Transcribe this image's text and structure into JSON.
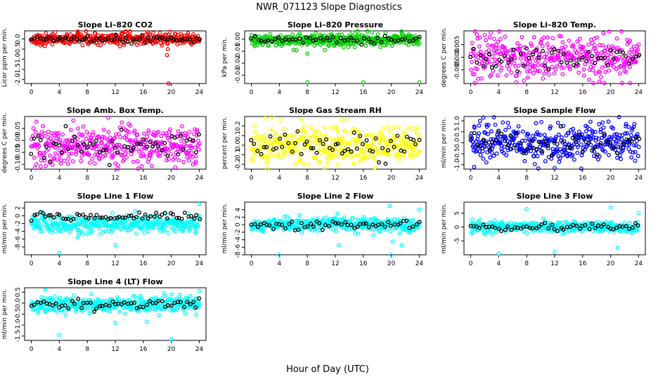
{
  "figure": {
    "title": "NWR_071123  Slope Diagnostics",
    "xlabel": "Hour of Day (UTC)",
    "colors": {
      "background": "#ffffff",
      "axis": "#000000",
      "reference_points": "#000000"
    }
  },
  "chart_data": [
    {
      "type": "scatter",
      "title": "Slope Li–820 CO2",
      "ylabel": "Licor ppm per min.",
      "color": "#ff0000",
      "xlim": [
        0,
        24
      ],
      "ylim": [
        -2.2,
        0.4
      ],
      "xticks": [
        0,
        4,
        8,
        12,
        16,
        20,
        24
      ],
      "yticks": [
        -2.0,
        -1.5,
        -1.0,
        -0.5,
        0.0
      ],
      "ytick_labels": [
        "-2.0",
        "-1.5",
        "-1.0",
        "-0.5",
        "0.0"
      ],
      "baseline": 0.0,
      "spread": 0.14,
      "black_spread": 0.09,
      "black_count": 60,
      "outliers": [
        [
          19.6,
          -2.2
        ],
        [
          19.4,
          -0.8
        ],
        [
          19.5,
          -0.5
        ],
        [
          20.5,
          0.25
        ],
        [
          19.8,
          0.35
        ],
        [
          1.2,
          0.15
        ]
      ]
    },
    {
      "type": "scatter",
      "title": "Slope Li–820 Pressure",
      "ylabel": "kPa per min.",
      "color": "#00cc00",
      "xlim": [
        0,
        24
      ],
      "ylim": [
        -0.037,
        0.007
      ],
      "xticks": [
        0,
        4,
        8,
        12,
        16,
        20,
        24
      ],
      "yticks": [
        -0.03,
        -0.02,
        -0.01,
        0.0
      ],
      "ytick_labels": [
        "-0.03",
        "-0.02",
        "-0.01",
        "0.00"
      ],
      "baseline": -0.0005,
      "spread": 0.0025,
      "black_spread": 0.0015,
      "black_count": 50,
      "outliers": [
        [
          8.0,
          -0.036
        ],
        [
          16.0,
          -0.036
        ],
        [
          24.0,
          -0.036
        ],
        [
          8.0,
          -0.012
        ],
        [
          10.5,
          -0.009
        ],
        [
          21.5,
          0.005
        ],
        [
          22.5,
          0.004
        ]
      ]
    },
    {
      "type": "scatter",
      "title": "Slope Li–820 Temp.",
      "ylabel": "degrees C per min.",
      "color": "#ff00ff",
      "xlim": [
        0,
        24
      ],
      "ylim": [
        -0.0105,
        0.0105
      ],
      "xticks": [
        0,
        4,
        8,
        12,
        16,
        20,
        24
      ],
      "yticks": [
        -0.005,
        0.0,
        0.005
      ],
      "ytick_labels": [
        "-0.005",
        "0.000",
        "0.005"
      ],
      "baseline": 0.0,
      "spread": 0.0042,
      "black_spread": 0.0025,
      "black_count": 55,
      "outliers": [
        [
          19.8,
          0.0102
        ],
        [
          17.5,
          -0.0103
        ],
        [
          22.8,
          -0.0103
        ]
      ]
    },
    {
      "type": "scatter",
      "title": "Slope Amb. Box Temp.",
      "ylabel": "degrees C per min.",
      "color": "#ff00ff",
      "xlim": [
        0,
        24
      ],
      "ylim": [
        -0.12,
        0.1
      ],
      "xticks": [
        0,
        4,
        8,
        12,
        16,
        20,
        24
      ],
      "yticks": [
        -0.1,
        -0.05,
        0.0,
        0.05
      ],
      "ytick_labels": [
        "-0.10",
        "-0.05",
        "0.00",
        "0.05"
      ],
      "baseline": -0.02,
      "spread": 0.042,
      "black_spread": 0.03,
      "black_count": 55,
      "outliers": [
        [
          11.0,
          0.095
        ],
        [
          0.5,
          -0.115
        ]
      ]
    },
    {
      "type": "scatter",
      "title": "Slope Gas Stream RH",
      "ylabel": "percent per min.",
      "color": "#ffff00",
      "xlim": [
        0,
        24
      ],
      "ylim": [
        -0.25,
        0.3
      ],
      "xticks": [
        0,
        4,
        8,
        12,
        16,
        20,
        24
      ],
      "yticks": [
        -0.2,
        -0.1,
        0.0,
        0.1,
        0.2
      ],
      "ytick_labels": [
        "-0.2",
        "-0.1",
        "0.0",
        "0.1",
        "0.2"
      ],
      "baseline": -0.01,
      "spread": 0.095,
      "black_spread": 0.07,
      "black_count": 55,
      "outliers": [
        [
          2.0,
          0.28
        ],
        [
          10.5,
          -0.24
        ]
      ]
    },
    {
      "type": "scatter",
      "title": "Slope Sample Flow",
      "ylabel": "ml/min per min.",
      "color": "#0000ff",
      "xlim": [
        0,
        24
      ],
      "ylim": [
        -1.2,
        1.2
      ],
      "xticks": [
        0,
        4,
        8,
        12,
        16,
        20,
        24
      ],
      "yticks": [
        -1.0,
        -0.5,
        0.0,
        0.5,
        1.0
      ],
      "ytick_labels": [
        "-1.0",
        "-0.5",
        "0.0",
        "0.5",
        "1.0"
      ],
      "baseline": 0.0,
      "spread": 0.42,
      "black_spread": 0.3,
      "black_count": 55,
      "outliers": [
        [
          1.8,
          1.15
        ],
        [
          12.0,
          -1.15
        ],
        [
          0.5,
          -1.1
        ]
      ]
    },
    {
      "type": "scatter",
      "title": "Slope Line 1 Flow",
      "ylabel": "ml/min per min.",
      "color": "#00ffff",
      "xlim": [
        0,
        24
      ],
      "ylim": [
        -10,
        3.5
      ],
      "xticks": [
        0,
        4,
        8,
        12,
        16,
        20,
        24
      ],
      "yticks": [
        -8,
        -6,
        -4,
        -2,
        0,
        2
      ],
      "ytick_labels": [
        "-8",
        "-6",
        "-4",
        "-2",
        "0",
        "2"
      ],
      "baseline": -2.2,
      "spread": 1.1,
      "black_baseline": -0.2,
      "black_spread": 0.5,
      "black_count": 60,
      "outliers": [
        [
          4.0,
          -9.5
        ],
        [
          12.0,
          -7.5
        ],
        [
          24.0,
          3.0
        ]
      ]
    },
    {
      "type": "scatter",
      "title": "Slope Line 2 Flow",
      "ylabel": "ml/min per min.",
      "color": "#00ffff",
      "xlim": [
        0,
        24
      ],
      "ylim": [
        -8,
        6
      ],
      "xticks": [
        0,
        4,
        8,
        12,
        16,
        20,
        24
      ],
      "yticks": [
        -8,
        -6,
        -4,
        -2,
        0,
        2,
        4
      ],
      "ytick_labels": [
        "-8",
        "-6",
        "-4",
        "-2",
        "0",
        "2",
        "4"
      ],
      "baseline": 0.0,
      "spread": 0.9,
      "black_spread": 0.6,
      "black_count": 55,
      "outliers": [
        [
          4.0,
          -8.0
        ],
        [
          20.0,
          -8.0
        ],
        [
          20.2,
          -4.5
        ],
        [
          12.5,
          -5.5
        ],
        [
          19.8,
          5.0
        ],
        [
          24.0,
          4.0
        ],
        [
          21.5,
          -5.5
        ]
      ]
    },
    {
      "type": "scatter",
      "title": "Slope Line 3 Flow",
      "ylabel": "ml/min per min.",
      "color": "#00ffff",
      "xlim": [
        0,
        24
      ],
      "ylim": [
        -10,
        9
      ],
      "xticks": [
        0,
        4,
        8,
        12,
        16,
        20,
        24
      ],
      "yticks": [
        -5,
        0,
        5
      ],
      "ytick_labels": [
        "-5",
        "0",
        "5"
      ],
      "baseline": 0.0,
      "spread": 1.0,
      "black_spread": 0.8,
      "black_count": 55,
      "outliers": [
        [
          4.0,
          -9.5
        ],
        [
          12.0,
          -9.0
        ],
        [
          8.0,
          6.5
        ],
        [
          20.0,
          7.0
        ],
        [
          21.0,
          -7.5
        ],
        [
          24.0,
          5.0
        ]
      ]
    },
    {
      "type": "scatter",
      "title": "Slope Line 4 (LT) Flow",
      "ylabel": "ml/min per min.",
      "color": "#00ffff",
      "xlim": [
        0,
        24
      ],
      "ylim": [
        -1.7,
        0.7
      ],
      "xticks": [
        0,
        4,
        8,
        12,
        16,
        20,
        24
      ],
      "yticks": [
        -1.5,
        -1.0,
        -0.5,
        0.0,
        0.5
      ],
      "ytick_labels": [
        "-1.5",
        "-1.0",
        "-0.5",
        "0.0",
        "0.5"
      ],
      "baseline": -0.05,
      "spread": 0.18,
      "black_spread": 0.13,
      "black_count": 55,
      "outliers": [
        [
          4.0,
          -1.45
        ],
        [
          20.0,
          -1.65
        ],
        [
          12.0,
          -0.9
        ],
        [
          16.5,
          -0.85
        ],
        [
          2.0,
          0.6
        ],
        [
          24.0,
          0.55
        ]
      ]
    }
  ]
}
